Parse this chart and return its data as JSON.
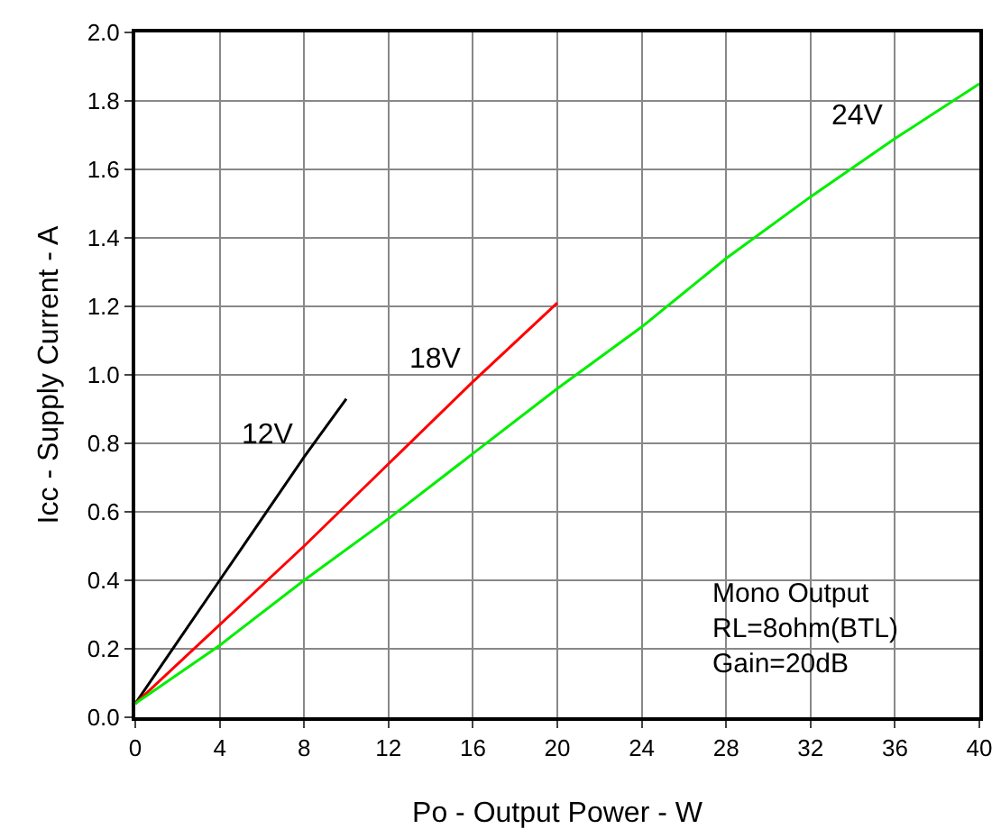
{
  "chart_data": {
    "type": "line",
    "xlabel": "Po - Output Power - W",
    "ylabel": "Icc - Supply Current - A",
    "series": [
      {
        "name": "12V",
        "color": "#000000",
        "x": [
          0,
          2,
          4,
          6,
          8,
          10
        ],
        "values": [
          0.04,
          0.22,
          0.4,
          0.58,
          0.76,
          0.93
        ]
      },
      {
        "name": "18V",
        "color": "#ff0000",
        "x": [
          0,
          4,
          8,
          12,
          16,
          20
        ],
        "values": [
          0.04,
          0.27,
          0.5,
          0.74,
          0.98,
          1.21
        ]
      },
      {
        "name": "24V",
        "color": "#00ee00",
        "x": [
          0,
          4,
          8,
          12,
          16,
          20,
          24,
          28,
          32,
          36,
          40
        ],
        "values": [
          0.04,
          0.21,
          0.4,
          0.58,
          0.77,
          0.96,
          1.14,
          1.34,
          1.52,
          1.69,
          1.85
        ]
      }
    ],
    "annotations": [
      "Mono Output\nRL=8ohm(BTL)\nGain=20dB"
    ],
    "xlim": [
      0,
      40
    ],
    "xticks": [
      0,
      4,
      8,
      12,
      16,
      20,
      24,
      28,
      32,
      36,
      40
    ],
    "ylim": [
      0,
      2
    ],
    "yticks": [
      {
        "value": 0,
        "label": "0.0"
      },
      0.2,
      0.4,
      0.6,
      0.8,
      {
        "value": 1,
        "label": "1.0"
      },
      1.2,
      1.4,
      1.6,
      1.8,
      {
        "value": 2,
        "label": "2.0"
      }
    ],
    "grid": true,
    "legend": false,
    "marker": "none",
    "line_style": "solid"
  }
}
